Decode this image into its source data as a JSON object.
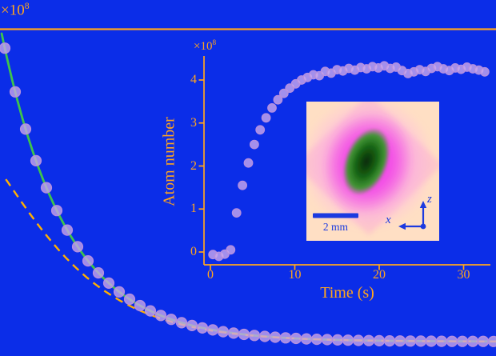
{
  "figure": {
    "colors": {
      "background": "#0b2de8",
      "axis": "#ffa51e",
      "green_fit": "#3ec44b",
      "dashed_model": "#ffb000",
      "marker_fill": "#c9a7ec",
      "marker_edge": "#b48fdf",
      "image_bg": "#ffdfc4",
      "cloud_magenta": "#f03ae8",
      "cloud_green_dark": "#0a2a06",
      "cloud_green_mid": "#2f9b22",
      "cloud_blue": "#1c3ae0"
    }
  },
  "chart_data": [
    {
      "id": "main-decay",
      "type": "scatter",
      "title": "",
      "xlabel": "",
      "ylabel": "",
      "x_unit": "s",
      "y_unit": "atoms",
      "y_offset": {
        "base": "×10",
        "exp": "8"
      },
      "x": [
        0,
        10,
        20,
        30,
        40,
        50,
        60,
        70,
        80,
        90,
        100,
        110,
        120,
        130,
        140,
        150,
        160,
        170,
        180,
        190,
        200,
        210,
        220,
        230,
        240,
        250,
        260,
        270,
        280,
        290,
        300,
        310,
        320,
        330,
        340,
        350,
        360,
        370,
        380,
        390,
        400,
        410,
        420,
        430,
        440,
        450,
        460,
        470
      ],
      "series": [
        {
          "name": "measured atom number",
          "marker": "circle",
          "values": [
            4.3,
            3.66,
            3.114,
            2.651,
            2.256,
            1.92,
            1.634,
            1.39,
            1.183,
            1.007,
            0.857,
            0.729,
            0.621,
            0.528,
            0.45,
            0.383,
            0.326,
            0.277,
            0.236,
            0.201,
            0.171,
            0.145,
            0.124,
            0.105,
            0.09,
            0.076,
            0.065,
            0.055,
            0.047,
            0.04,
            0.034,
            0.029,
            0.025,
            0.021,
            0.018,
            0.015,
            0.013,
            0.011,
            0.009,
            0.008,
            0.007,
            0.006,
            0.005,
            0.004,
            0.004,
            0.003,
            0.003,
            0.002
          ]
        },
        {
          "name": "full decay fit (solid green line)",
          "style": "solid",
          "color_key": "green_fit",
          "model": {
            "type": "exponential",
            "amplitude": 4.3,
            "tau": 62,
            "t_min": -3,
            "t_max": 478
          }
        },
        {
          "name": "two-body loss model (dashed orange line)",
          "style": "dashed",
          "color_key": "dashed_model",
          "model": {
            "type": "exponential-difference",
            "amplitude": 4.3,
            "tau": 62,
            "amplitude2": 1.9,
            "tau2": 40,
            "t_min": 1,
            "t_max": 478
          }
        }
      ]
    },
    {
      "id": "inset-loading-curve",
      "type": "scatter",
      "title": "",
      "xlabel": "Time (s)",
      "ylabel": "Atom number",
      "y_offset": {
        "base": "×10",
        "exp": "8"
      },
      "xticks": [
        0,
        10,
        20,
        30
      ],
      "yticks": [
        0,
        1,
        2,
        3,
        4
      ],
      "xlim": [
        0,
        33.5
      ],
      "ylim": [
        -0.35,
        4.8
      ],
      "x": [
        0.3,
        1.0,
        1.7,
        2.4,
        3.1,
        3.8,
        4.5,
        5.2,
        5.9,
        6.6,
        7.3,
        8.0,
        8.7,
        9.4,
        10.1,
        10.8,
        11.5,
        12.2,
        12.9,
        13.6,
        14.3,
        15.0,
        15.7,
        16.4,
        17.1,
        17.8,
        18.5,
        19.2,
        19.9,
        20.6,
        21.3,
        22.0,
        22.7,
        23.4,
        24.1,
        24.8,
        25.5,
        26.2,
        26.9,
        27.6,
        28.3,
        29.0,
        29.7,
        30.4,
        31.1,
        31.8,
        32.5
      ],
      "values": [
        -0.06,
        -0.1,
        -0.05,
        0.05,
        0.91,
        1.55,
        2.07,
        2.5,
        2.84,
        3.12,
        3.35,
        3.54,
        3.69,
        3.81,
        3.91,
        4.0,
        4.06,
        4.12,
        4.1,
        4.2,
        4.16,
        4.24,
        4.21,
        4.27,
        4.23,
        4.29,
        4.26,
        4.31,
        4.28,
        4.33,
        4.27,
        4.3,
        4.22,
        4.15,
        4.19,
        4.24,
        4.2,
        4.27,
        4.31,
        4.26,
        4.22,
        4.28,
        4.25,
        4.3,
        4.26,
        4.23,
        4.19
      ]
    }
  ],
  "cloud_image": {
    "description": "absorption image of atom cloud",
    "scalebar_label": "2 mm",
    "axis_horizontal_label": "x",
    "axis_vertical_label": "z"
  }
}
